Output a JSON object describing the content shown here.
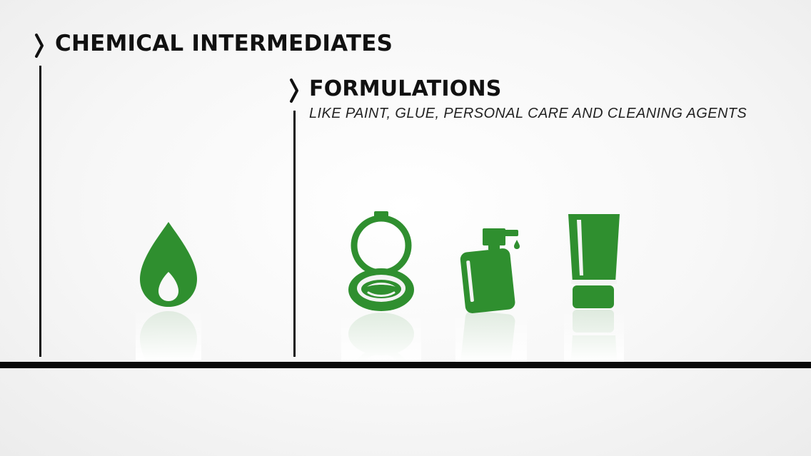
{
  "sections": {
    "chemical_intermediates": {
      "title": "CHEMICAL INTERMEDIATES"
    },
    "formulations": {
      "title": "FORMULATIONS",
      "subtitle": "LIKE PAINT, GLUE, PERSONAL CARE AND CLEANING AGENTS"
    }
  },
  "icons": [
    "droplet-icon",
    "compact-mirror-icon",
    "pump-bottle-icon",
    "cream-tube-icon"
  ],
  "colors": {
    "icon_green": "#2f8f2f",
    "text": "#111111",
    "lines": "#111111",
    "background": "#f6f6f6"
  }
}
